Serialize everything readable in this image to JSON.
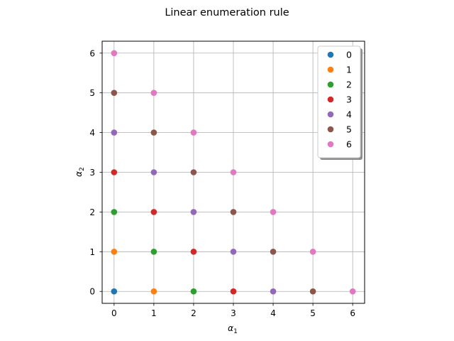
{
  "chart_data": {
    "type": "scatter",
    "title": "Linear enumeration rule",
    "xlabel": "α",
    "xlabel_sub": "1",
    "ylabel": "α",
    "ylabel_sub": "2",
    "xlim": [
      -0.3,
      6.3
    ],
    "ylim": [
      -0.3,
      6.3
    ],
    "xticks": [
      "0",
      "1",
      "2",
      "3",
      "4",
      "5",
      "6"
    ],
    "yticks": [
      "0",
      "1",
      "2",
      "3",
      "4",
      "5",
      "6"
    ],
    "grid": true,
    "legend": {
      "position": "upper-right",
      "shadow": true
    },
    "series": [
      {
        "name": "0",
        "color": "#1f77b4",
        "points": [
          [
            0,
            0
          ]
        ]
      },
      {
        "name": "1",
        "color": "#ff7f0e",
        "points": [
          [
            1,
            0
          ],
          [
            0,
            1
          ]
        ]
      },
      {
        "name": "2",
        "color": "#2ca02c",
        "points": [
          [
            2,
            0
          ],
          [
            1,
            1
          ],
          [
            0,
            2
          ]
        ]
      },
      {
        "name": "3",
        "color": "#d62728",
        "points": [
          [
            3,
            0
          ],
          [
            2,
            1
          ],
          [
            1,
            2
          ],
          [
            0,
            3
          ]
        ]
      },
      {
        "name": "4",
        "color": "#9467bd",
        "points": [
          [
            4,
            0
          ],
          [
            3,
            1
          ],
          [
            2,
            2
          ],
          [
            1,
            3
          ],
          [
            0,
            4
          ]
        ]
      },
      {
        "name": "5",
        "color": "#8c564b",
        "points": [
          [
            5,
            0
          ],
          [
            4,
            1
          ],
          [
            3,
            2
          ],
          [
            2,
            3
          ],
          [
            1,
            4
          ],
          [
            0,
            5
          ]
        ]
      },
      {
        "name": "6",
        "color": "#e377c2",
        "points": [
          [
            6,
            0
          ],
          [
            5,
            1
          ],
          [
            4,
            2
          ],
          [
            3,
            3
          ],
          [
            2,
            4
          ],
          [
            1,
            5
          ],
          [
            0,
            6
          ]
        ]
      }
    ]
  }
}
